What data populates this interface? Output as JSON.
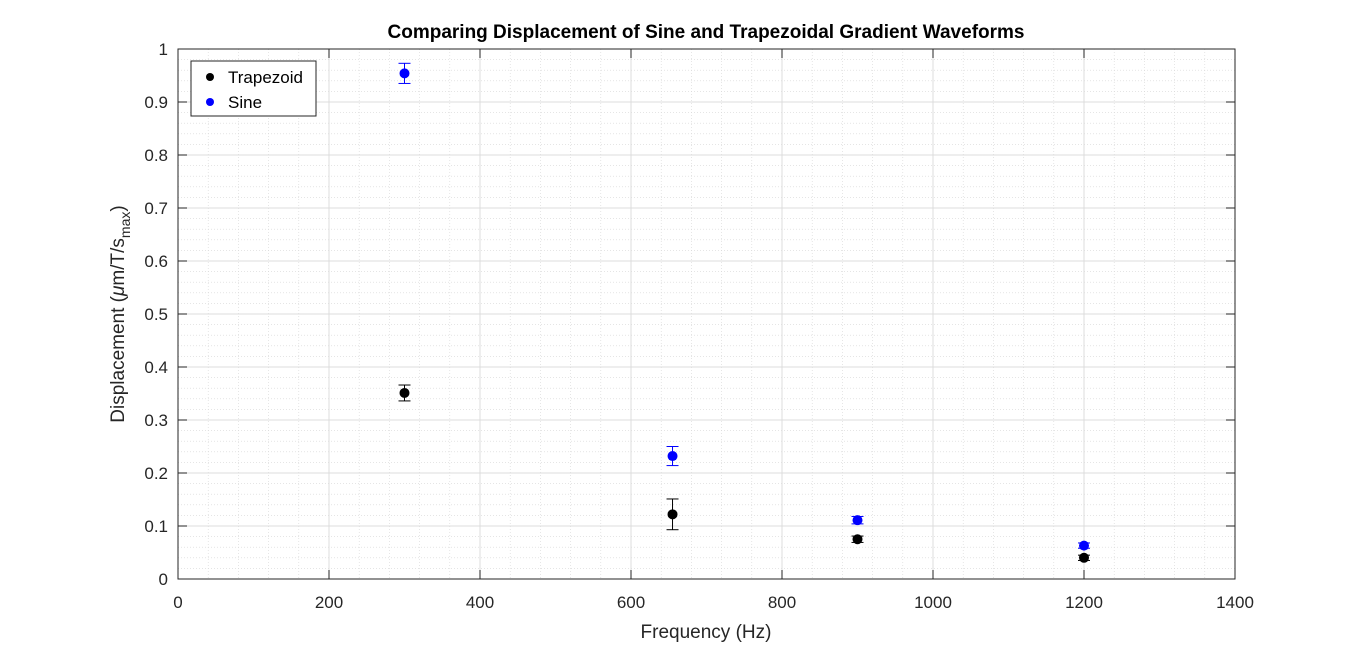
{
  "chart_data": {
    "type": "scatter",
    "title": "Comparing Displacement of Sine and Trapezoidal Gradient Waveforms",
    "xlabel": "Frequency (Hz)",
    "ylabel": {
      "main": "Displacement (",
      "mu": "μ",
      "unit": "m/T/s",
      "subscript": "max",
      "close": ")"
    },
    "xlim": [
      0,
      1400
    ],
    "ylim": [
      0,
      1
    ],
    "xticks": [
      0,
      200,
      400,
      600,
      800,
      1000,
      1200,
      1400
    ],
    "yticks": [
      0,
      0.1,
      0.2,
      0.3,
      0.4,
      0.5,
      0.6,
      0.7,
      0.8,
      0.9,
      1
    ],
    "xtick_labels": [
      "0",
      "200",
      "400",
      "600",
      "800",
      "1000",
      "1200",
      "1400"
    ],
    "ytick_labels": [
      "0",
      "0.1",
      "0.2",
      "0.3",
      "0.4",
      "0.5",
      "0.6",
      "0.7",
      "0.8",
      "0.9",
      "1"
    ],
    "grid": true,
    "minor_grid": true,
    "legend_position": "top-left",
    "series": [
      {
        "name": "Trapezoid",
        "color": "#000000",
        "x": [
          300,
          655,
          900,
          1200
        ],
        "y": [
          0.351,
          0.122,
          0.075,
          0.04
        ],
        "err": [
          0.015,
          0.029,
          0.006,
          0.005
        ]
      },
      {
        "name": "Sine",
        "color": "#0000ff",
        "x": [
          300,
          655,
          900,
          1200
        ],
        "y": [
          0.954,
          0.232,
          0.111,
          0.063
        ],
        "err": [
          0.019,
          0.018,
          0.007,
          0.005
        ]
      }
    ]
  }
}
